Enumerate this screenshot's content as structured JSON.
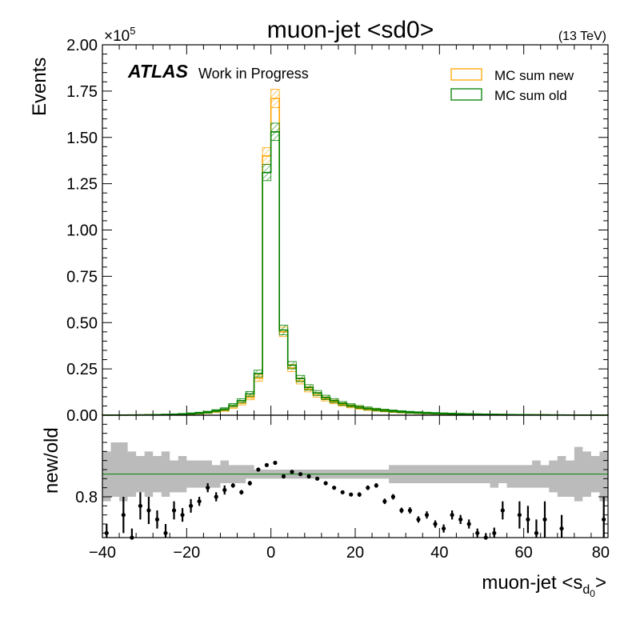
{
  "chart_data": [
    {
      "type": "line",
      "title": "muon-jet <sd0>",
      "energy_label": "(13 TeV)",
      "exponent_label": "×10",
      "exponent_power": "5",
      "atlas_label": "ATLAS",
      "atlas_sublabel": "Work in Progress",
      "ylabel": "Events",
      "ylim": [
        0,
        200000
      ],
      "yticks": [
        0,
        25000,
        50000,
        75000,
        100000,
        125000,
        150000,
        175000,
        200000
      ],
      "ytick_labels": [
        "0.00",
        "0.25",
        "0.50",
        "0.75",
        "1.00",
        "1.25",
        "1.50",
        "1.75",
        "2.00"
      ],
      "xlim": [
        -40,
        80
      ],
      "bin_edges": [
        -40,
        -38,
        -36,
        -34,
        -32,
        -30,
        -28,
        -26,
        -24,
        -22,
        -20,
        -18,
        -16,
        -14,
        -12,
        -10,
        -8,
        -6,
        -4,
        -2,
        0,
        2,
        4,
        6,
        8,
        10,
        12,
        14,
        16,
        18,
        20,
        22,
        24,
        26,
        28,
        30,
        32,
        34,
        36,
        38,
        40,
        42,
        44,
        46,
        48,
        50,
        52,
        54,
        56,
        58,
        60,
        62,
        64,
        66,
        68,
        70,
        72,
        74,
        76,
        78,
        80
      ],
      "legend_position": "top-right",
      "series": [
        {
          "name": "MC sum new",
          "color": "#FFA500",
          "values": [
            50,
            60,
            80,
            100,
            130,
            170,
            220,
            300,
            400,
            550,
            750,
            1000,
            1400,
            2000,
            2800,
            4500,
            6500,
            9500,
            20000,
            140000,
            171000,
            45000,
            25500,
            18500,
            14000,
            11000,
            8800,
            7200,
            5800,
            4800,
            4000,
            3300,
            2800,
            2400,
            2000,
            1700,
            1450,
            1250,
            1080,
            950,
            830,
            720,
            620,
            540,
            470,
            410,
            360,
            310,
            270,
            230,
            200,
            170,
            150,
            130,
            110,
            95,
            80,
            70,
            60,
            50
          ]
        },
        {
          "name": "MC sum old",
          "color": "#008000",
          "values": [
            60,
            70,
            95,
            120,
            150,
            200,
            260,
            350,
            470,
            650,
            900,
            1200,
            1650,
            2400,
            3300,
            5400,
            7800,
            11500,
            22500,
            131000,
            153000,
            46000,
            27000,
            19800,
            15000,
            12000,
            9600,
            7900,
            6400,
            5300,
            4400,
            3700,
            3100,
            2650,
            2250,
            1900,
            1600,
            1400,
            1200,
            1050,
            920,
            800,
            690,
            600,
            520,
            455,
            400,
            345,
            300,
            260,
            225,
            195,
            170,
            145,
            125,
            105,
            90,
            78,
            66,
            56
          ]
        }
      ]
    },
    {
      "type": "scatter",
      "ylabel": "new/old",
      "xlabel": "muon-jet <s",
      "xlabel_sub": "d",
      "xlabel_subsub": "0",
      "xlabel_end": ">",
      "ylim": [
        0.71,
        0.98
      ],
      "yticks": [
        0.8
      ],
      "ytick_labels": [
        "0.8"
      ],
      "xlim": [
        -40,
        80
      ],
      "xticks": [
        -40,
        -20,
        0,
        20,
        40,
        60,
        80
      ],
      "xtick_labels": [
        "−40",
        "−20",
        "0",
        "20",
        "40",
        "60",
        "80"
      ],
      "reference_line": 0.85,
      "reference_color": "#008000",
      "band_color": "#bbbbbb",
      "band_upper": [
        0.9,
        0.92,
        0.92,
        0.9,
        0.89,
        0.9,
        0.89,
        0.9,
        0.88,
        0.89,
        0.88,
        0.88,
        0.88,
        0.87,
        0.88,
        0.87,
        0.87,
        0.87,
        0.86,
        0.86,
        0.86,
        0.86,
        0.86,
        0.86,
        0.86,
        0.86,
        0.86,
        0.86,
        0.86,
        0.86,
        0.86,
        0.86,
        0.86,
        0.86,
        0.87,
        0.87,
        0.87,
        0.87,
        0.87,
        0.87,
        0.87,
        0.87,
        0.87,
        0.87,
        0.87,
        0.87,
        0.87,
        0.87,
        0.87,
        0.87,
        0.87,
        0.88,
        0.87,
        0.88,
        0.89,
        0.88,
        0.91,
        0.9,
        0.89,
        0.9
      ],
      "band_lower": [
        0.79,
        0.8,
        0.79,
        0.8,
        0.81,
        0.8,
        0.81,
        0.8,
        0.81,
        0.81,
        0.82,
        0.82,
        0.82,
        0.82,
        0.83,
        0.83,
        0.83,
        0.84,
        0.84,
        0.84,
        0.84,
        0.84,
        0.84,
        0.84,
        0.84,
        0.84,
        0.84,
        0.84,
        0.84,
        0.84,
        0.84,
        0.84,
        0.84,
        0.84,
        0.83,
        0.83,
        0.83,
        0.83,
        0.83,
        0.83,
        0.83,
        0.83,
        0.83,
        0.83,
        0.83,
        0.83,
        0.82,
        0.83,
        0.82,
        0.82,
        0.82,
        0.82,
        0.82,
        0.81,
        0.8,
        0.8,
        0.79,
        0.8,
        0.81,
        0.79
      ],
      "points": [
        {
          "x": -39,
          "y": 0.72,
          "err": 0.02
        },
        {
          "x": -35,
          "y": 0.76,
          "err": 0.04
        },
        {
          "x": -33,
          "y": 0.71,
          "err": 0.02
        },
        {
          "x": -31,
          "y": 0.78,
          "err": 0.03
        },
        {
          "x": -29,
          "y": 0.77,
          "err": 0.03
        },
        {
          "x": -27,
          "y": 0.75,
          "err": 0.02
        },
        {
          "x": -25,
          "y": 0.72,
          "err": 0.02
        },
        {
          "x": -23,
          "y": 0.77,
          "err": 0.02
        },
        {
          "x": -21,
          "y": 0.76,
          "err": 0.015
        },
        {
          "x": -19,
          "y": 0.78,
          "err": 0.015
        },
        {
          "x": -17,
          "y": 0.79,
          "err": 0.01
        },
        {
          "x": -15,
          "y": 0.82,
          "err": 0.01
        },
        {
          "x": -13,
          "y": 0.8,
          "err": 0.01
        },
        {
          "x": -11,
          "y": 0.815,
          "err": 0.01
        },
        {
          "x": -9,
          "y": 0.825,
          "err": 0.005
        },
        {
          "x": -7,
          "y": 0.81,
          "err": 0.005
        },
        {
          "x": -5,
          "y": 0.83,
          "err": 0.005
        },
        {
          "x": -3,
          "y": 0.86,
          "err": 0.003
        },
        {
          "x": -1,
          "y": 0.87,
          "err": 0.002
        },
        {
          "x": 1,
          "y": 0.875,
          "err": 0.002
        },
        {
          "x": 3,
          "y": 0.845,
          "err": 0.002
        },
        {
          "x": 5,
          "y": 0.855,
          "err": 0.002
        },
        {
          "x": 7,
          "y": 0.85,
          "err": 0.002
        },
        {
          "x": 9,
          "y": 0.845,
          "err": 0.003
        },
        {
          "x": 11,
          "y": 0.84,
          "err": 0.003
        },
        {
          "x": 13,
          "y": 0.83,
          "err": 0.003
        },
        {
          "x": 15,
          "y": 0.82,
          "err": 0.004
        },
        {
          "x": 17,
          "y": 0.81,
          "err": 0.004
        },
        {
          "x": 19,
          "y": 0.805,
          "err": 0.004
        },
        {
          "x": 21,
          "y": 0.805,
          "err": 0.005
        },
        {
          "x": 23,
          "y": 0.82,
          "err": 0.005
        },
        {
          "x": 25,
          "y": 0.825,
          "err": 0.005
        },
        {
          "x": 27,
          "y": 0.79,
          "err": 0.006
        },
        {
          "x": 29,
          "y": 0.8,
          "err": 0.006
        },
        {
          "x": 31,
          "y": 0.77,
          "err": 0.006
        },
        {
          "x": 33,
          "y": 0.77,
          "err": 0.007
        },
        {
          "x": 35,
          "y": 0.75,
          "err": 0.007
        },
        {
          "x": 37,
          "y": 0.76,
          "err": 0.008
        },
        {
          "x": 39,
          "y": 0.74,
          "err": 0.008
        },
        {
          "x": 41,
          "y": 0.73,
          "err": 0.009
        },
        {
          "x": 43,
          "y": 0.76,
          "err": 0.01
        },
        {
          "x": 45,
          "y": 0.75,
          "err": 0.01
        },
        {
          "x": 47,
          "y": 0.74,
          "err": 0.01
        },
        {
          "x": 49,
          "y": 0.72,
          "err": 0.01
        },
        {
          "x": 51,
          "y": 0.71,
          "err": 0.01
        },
        {
          "x": 53,
          "y": 0.72,
          "err": 0.012
        },
        {
          "x": 55,
          "y": 0.77,
          "err": 0.02
        },
        {
          "x": 59,
          "y": 0.76,
          "err": 0.03
        },
        {
          "x": 61,
          "y": 0.75,
          "err": 0.03
        },
        {
          "x": 63,
          "y": 0.72,
          "err": 0.03
        },
        {
          "x": 65,
          "y": 0.75,
          "err": 0.04
        },
        {
          "x": 69,
          "y": 0.73,
          "err": 0.03
        },
        {
          "x": 79,
          "y": 0.75,
          "err": 0.05
        }
      ]
    }
  ]
}
